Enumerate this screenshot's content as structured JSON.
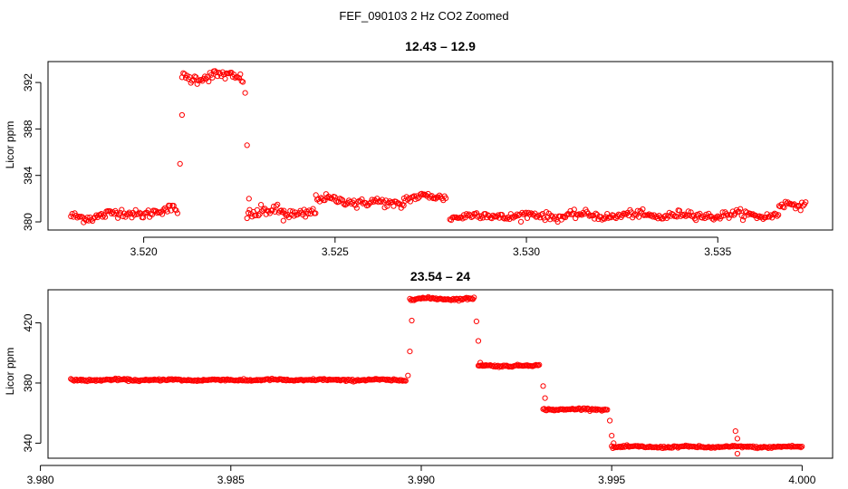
{
  "figure_title": "FEF_090103  2 Hz CO2 Zoomed",
  "colors": {
    "points": "#ff0000",
    "axis": "#000000"
  },
  "chart_data": [
    {
      "type": "scatter",
      "title": "12.43 – 12.9",
      "xlabel": "",
      "ylabel": "Licor ppm",
      "xlim": [
        3.5175,
        3.538
      ],
      "ylim": [
        379.3,
        393.8
      ],
      "x_ticks": [
        3.52,
        3.525,
        3.53,
        3.535
      ],
      "x_tick_labels": [
        "3.520",
        "3.525",
        "3.530",
        "3.535"
      ],
      "y_ticks": [
        380,
        384,
        388,
        392
      ],
      "y_tick_labels": [
        "380",
        "384",
        "388",
        "392"
      ],
      "segments": [
        {
          "x0": 3.5181,
          "x1": 3.5209,
          "y0": 380.4,
          "y1": 381.0,
          "noise": 0.35
        },
        {
          "x0": 3.521,
          "x1": 3.5226,
          "y0": 392.5,
          "y1": 392.5,
          "noise": 0.4
        },
        {
          "x0": 3.5227,
          "x1": 3.5245,
          "y0": 380.8,
          "y1": 380.8,
          "noise": 0.45
        },
        {
          "x0": 3.5245,
          "x1": 3.5255,
          "y0": 381.9,
          "y1": 381.9,
          "noise": 0.3
        },
        {
          "x0": 3.5255,
          "x1": 3.5268,
          "y0": 381.6,
          "y1": 381.6,
          "noise": 0.35
        },
        {
          "x0": 3.5268,
          "x1": 3.5279,
          "y0": 382.1,
          "y1": 382.1,
          "noise": 0.3
        },
        {
          "x0": 3.528,
          "x1": 3.5366,
          "y0": 380.5,
          "y1": 380.6,
          "noise": 0.3
        },
        {
          "x0": 3.5366,
          "x1": 3.5373,
          "y0": 381.4,
          "y1": 381.4,
          "noise": 0.3
        }
      ],
      "isolated_points": [
        [
          3.52095,
          385.0
        ],
        [
          3.521,
          389.2
        ],
        [
          3.52265,
          391.1
        ],
        [
          3.5227,
          386.6
        ],
        [
          3.52275,
          382.0
        ],
        [
          3.52365,
          380.1
        ]
      ]
    },
    {
      "type": "scatter",
      "title": "23.54 – 24",
      "xlabel": "",
      "ylabel": "Licor ppm",
      "xlim": [
        3.9802,
        4.0008
      ],
      "ylim": [
        330,
        442
      ],
      "x_ticks": [
        3.98,
        3.985,
        3.99,
        3.995,
        4.0
      ],
      "x_tick_labels": [
        "3.980",
        "3.985",
        "3.990",
        "3.995",
        "4.000"
      ],
      "y_ticks": [
        340,
        380,
        420
      ],
      "y_tick_labels": [
        "340",
        "380",
        "420"
      ],
      "segments": [
        {
          "x0": 3.9808,
          "x1": 3.9896,
          "y0": 382.0,
          "y1": 382.0,
          "noise": 0.6
        },
        {
          "x0": 3.9897,
          "x1": 3.9914,
          "y0": 436.0,
          "y1": 436.0,
          "noise": 0.7
        },
        {
          "x0": 3.9915,
          "x1": 3.9931,
          "y0": 391.5,
          "y1": 391.5,
          "noise": 0.6
        },
        {
          "x0": 3.9932,
          "x1": 3.9949,
          "y0": 362.5,
          "y1": 362.5,
          "noise": 0.6
        },
        {
          "x0": 3.995,
          "x1": 4.0,
          "y0": 337.5,
          "y1": 337.5,
          "noise": 0.6
        }
      ],
      "isolated_points": [
        [
          3.98965,
          385.0
        ],
        [
          3.9897,
          401.0
        ],
        [
          3.98975,
          421.5
        ],
        [
          3.99145,
          421.0
        ],
        [
          3.9915,
          408.0
        ],
        [
          3.99155,
          393.5
        ],
        [
          3.9932,
          378.0
        ],
        [
          3.99325,
          370.0
        ],
        [
          3.99495,
          355.0
        ],
        [
          3.995,
          345.0
        ],
        [
          3.99505,
          340.0
        ],
        [
          3.99825,
          348.0
        ],
        [
          3.9983,
          343.0
        ],
        [
          3.9983,
          333.0
        ]
      ]
    }
  ]
}
